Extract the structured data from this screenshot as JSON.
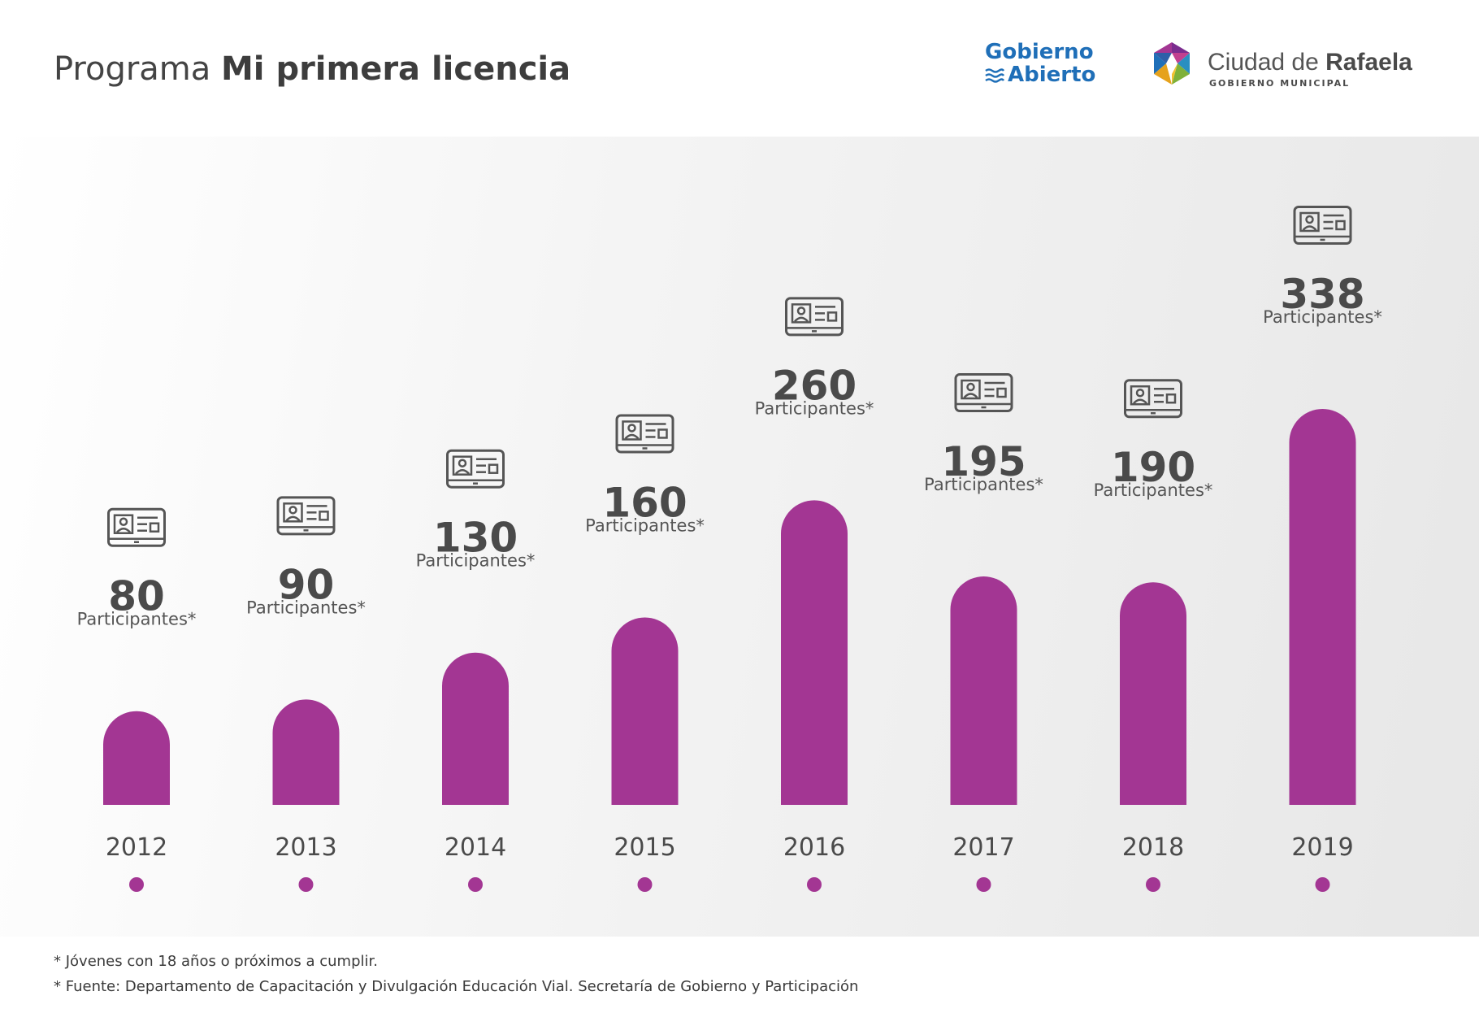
{
  "header": {
    "title_light": "Programa ",
    "title_bold": "Mi primera licencia"
  },
  "logos": {
    "gobierno_line1": "Gobierno",
    "gobierno_line2": "Abierto",
    "rafaela_light": "Ciudad de ",
    "rafaela_bold": "Rafaela",
    "rafaela_sub": "GOBIERNO MUNICIPAL"
  },
  "chart_data": {
    "type": "bar",
    "title": "",
    "categories": [
      "2012",
      "2013",
      "2014",
      "2015",
      "2016",
      "2017",
      "2018",
      "2019"
    ],
    "values": [
      80,
      90,
      130,
      160,
      260,
      195,
      190,
      338
    ],
    "value_caption": "Participantes*",
    "icon": "id-card-icon",
    "colors": {
      "bar": "#a33693",
      "dot": "#a33693",
      "text": "#4a4a4a",
      "icon": "#555555"
    }
  },
  "footnotes": [
    "* Jóvenes con 18 años o próximos a cumplir.",
    "* Fuente: Departamento de Capacitación y Divulgación Educación Vial.  Secretaría de Gobierno y Participación"
  ]
}
